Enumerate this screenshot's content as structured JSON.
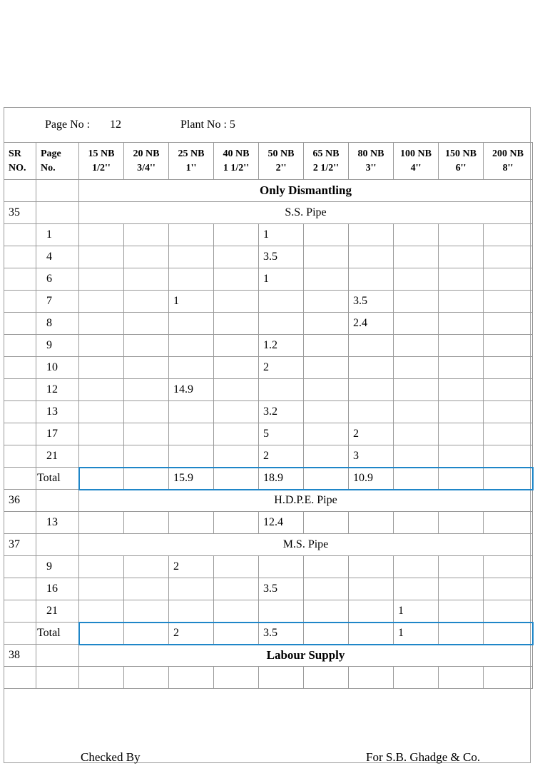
{
  "header": {
    "page_label": "Page No :",
    "page_value": "12",
    "plant_label": "Plant No : 5"
  },
  "columns": [
    {
      "l1": "SR",
      "l2": "NO."
    },
    {
      "l1": "Page",
      "l2": "No."
    },
    {
      "l1": "15 NB",
      "l2": "1/2''"
    },
    {
      "l1": "20 NB",
      "l2": "3/4''"
    },
    {
      "l1": "25 NB",
      "l2": "1''"
    },
    {
      "l1": "40 NB",
      "l2": "1 1/2''"
    },
    {
      "l1": "50 NB",
      "l2": "2''"
    },
    {
      "l1": "65 NB",
      "l2": "2 1/2''"
    },
    {
      "l1": "80 NB",
      "l2": "3''"
    },
    {
      "l1": "100 NB",
      "l2": "4''"
    },
    {
      "l1": "150 NB",
      "l2": "6''"
    },
    {
      "l1": "200 NB",
      "l2": "8''"
    }
  ],
  "rows": [
    {
      "type": "section",
      "sr": "",
      "label": "Only Dismantling",
      "bold": true
    },
    {
      "type": "section",
      "sr": "35",
      "label": "S.S. Pipe",
      "bold": false
    },
    {
      "type": "data",
      "page": "1",
      "cells": [
        "",
        "",
        "",
        "",
        "1",
        "",
        "",
        "",
        "",
        ""
      ]
    },
    {
      "type": "data",
      "page": "4",
      "cells": [
        "",
        "",
        "",
        "",
        "3.5",
        "",
        "",
        "",
        "",
        ""
      ]
    },
    {
      "type": "data",
      "page": "6",
      "cells": [
        "",
        "",
        "",
        "",
        "1",
        "",
        "",
        "",
        "",
        ""
      ]
    },
    {
      "type": "data",
      "page": "7",
      "cells": [
        "",
        "",
        "1",
        "",
        "",
        "",
        "3.5",
        "",
        "",
        ""
      ]
    },
    {
      "type": "data",
      "page": "8",
      "cells": [
        "",
        "",
        "",
        "",
        "",
        "",
        "2.4",
        "",
        "",
        ""
      ]
    },
    {
      "type": "data",
      "page": "9",
      "cells": [
        "",
        "",
        "",
        "",
        "1.2",
        "",
        "",
        "",
        "",
        ""
      ]
    },
    {
      "type": "data",
      "page": "10",
      "cells": [
        "",
        "",
        "",
        "",
        "2",
        "",
        "",
        "",
        "",
        ""
      ]
    },
    {
      "type": "data",
      "page": "12",
      "cells": [
        "",
        "",
        "14.9",
        "",
        "",
        "",
        "",
        "",
        "",
        ""
      ]
    },
    {
      "type": "data",
      "page": "13",
      "cells": [
        "",
        "",
        "",
        "",
        "3.2",
        "",
        "",
        "",
        "",
        ""
      ]
    },
    {
      "type": "data",
      "page": "17",
      "cells": [
        "",
        "",
        "",
        "",
        "5",
        "",
        "2",
        "",
        "",
        ""
      ]
    },
    {
      "type": "data",
      "page": "21",
      "cells": [
        "",
        "",
        "",
        "",
        "2",
        "",
        "3",
        "",
        "",
        ""
      ]
    },
    {
      "type": "total",
      "label": "Total",
      "cells": [
        "",
        "",
        "15.9",
        "",
        "18.9",
        "",
        "10.9",
        "",
        "",
        ""
      ]
    },
    {
      "type": "section",
      "sr": "36",
      "label": "H.D.P.E. Pipe",
      "bold": false
    },
    {
      "type": "data",
      "page": "13",
      "cells": [
        "",
        "",
        "",
        "",
        "12.4",
        "",
        "",
        "",
        "",
        ""
      ]
    },
    {
      "type": "section",
      "sr": "37",
      "label": "M.S. Pipe",
      "bold": false
    },
    {
      "type": "data",
      "page": "9",
      "cells": [
        "",
        "",
        "2",
        "",
        "",
        "",
        "",
        "",
        "",
        ""
      ]
    },
    {
      "type": "data",
      "page": "16",
      "cells": [
        "",
        "",
        "",
        "",
        "3.5",
        "",
        "",
        "",
        "",
        ""
      ]
    },
    {
      "type": "data",
      "page": "21",
      "cells": [
        "",
        "",
        "",
        "",
        "",
        "",
        "",
        "1",
        "",
        ""
      ]
    },
    {
      "type": "total",
      "label": "Total",
      "cells": [
        "",
        "",
        "2",
        "",
        "3.5",
        "",
        "",
        "1",
        "",
        ""
      ]
    },
    {
      "type": "section",
      "sr": "38",
      "label": "Labour Supply",
      "bold": true
    },
    {
      "type": "data",
      "page": "",
      "cells": [
        "",
        "",
        "",
        "",
        "",
        "",
        "",
        "",
        "",
        ""
      ]
    }
  ],
  "footer": {
    "checked_by": "Checked By",
    "signatory": "For S.B. Ghadge & Co."
  }
}
